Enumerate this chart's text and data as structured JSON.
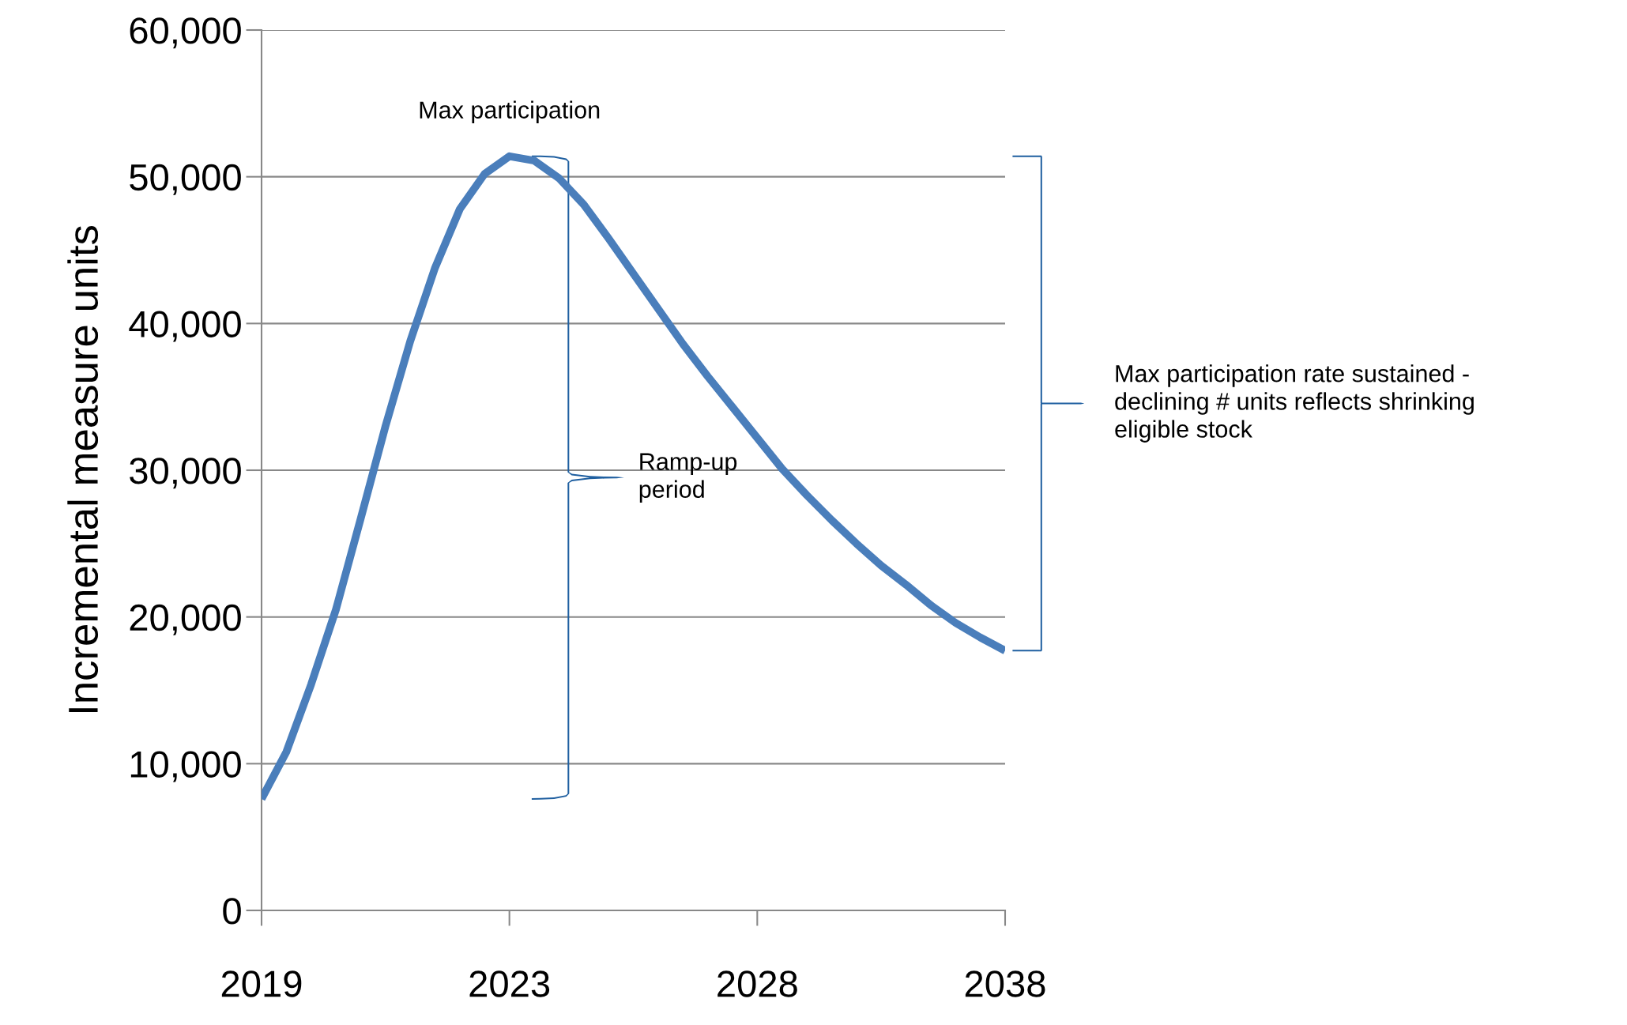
{
  "chart_data": {
    "type": "line",
    "ylabel": "Incremental measure units",
    "categories": [
      "2019",
      null,
      null,
      null,
      null,
      null,
      null,
      null,
      null,
      null,
      "2023",
      null,
      null,
      null,
      null,
      null,
      null,
      null,
      null,
      null,
      "2028",
      null,
      null,
      null,
      null,
      null,
      null,
      null,
      null,
      null,
      "2038"
    ],
    "series": [
      {
        "color": "#4a7ebb",
        "values": [
          7600,
          10800,
          15400,
          20500,
          26700,
          33000,
          38800,
          43800,
          47800,
          50200,
          51400,
          51100,
          49900,
          48100,
          45800,
          43400,
          41000,
          38600,
          36400,
          34300,
          32200,
          30100,
          28300,
          26600,
          25000,
          23500,
          22200,
          20800,
          19600,
          18600,
          17700
        ]
      }
    ],
    "ylim": [
      0,
      60000
    ],
    "yticks": [
      {
        "value": 0,
        "label": "0"
      },
      {
        "value": 10000,
        "label": "10,000"
      },
      {
        "value": 20000,
        "label": "20,000"
      },
      {
        "value": 30000,
        "label": "30,000"
      },
      {
        "value": 40000,
        "label": "40,000"
      },
      {
        "value": 50000,
        "label": "50,000"
      },
      {
        "value": 60000,
        "label": "60,000"
      }
    ],
    "grid": "y",
    "marker": "none",
    "line_style": "solid",
    "annotations": [
      {
        "text": "Max participation",
        "x": "2023",
        "y": 51400
      },
      "Ramp-up\nperiod",
      "Max participation rate sustained -\ndeclining # units reflects shrinking\neligible stock"
    ]
  }
}
